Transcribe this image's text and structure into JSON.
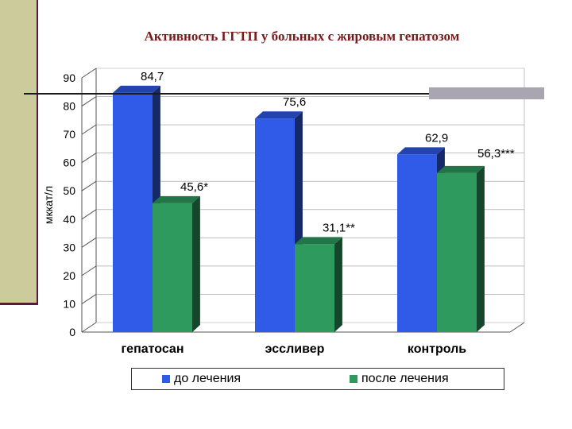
{
  "chart_data": {
    "type": "bar",
    "title": "Активность ГГТП у больных с жировым гепатозом",
    "ylabel": "мккат/л",
    "xlabel": "",
    "ylim": [
      0,
      90
    ],
    "yticks": [
      "0",
      "10",
      "20",
      "30",
      "40",
      "50",
      "60",
      "70",
      "80",
      "90"
    ],
    "categories": [
      "гепатосан",
      "эссливер",
      "контроль"
    ],
    "series": [
      {
        "name": "до лечения",
        "color": "#2f5be8",
        "values": [
          84.7,
          75.6,
          62.9
        ],
        "labels": [
          "84,7",
          "75,6",
          "62,9"
        ]
      },
      {
        "name": "после лечения",
        "color": "#2e9a5e",
        "values": [
          45.6,
          31.1,
          56.3
        ],
        "labels": [
          "45,6*",
          "31,1**",
          "56,3***"
        ]
      }
    ],
    "legend_position": "bottom"
  }
}
